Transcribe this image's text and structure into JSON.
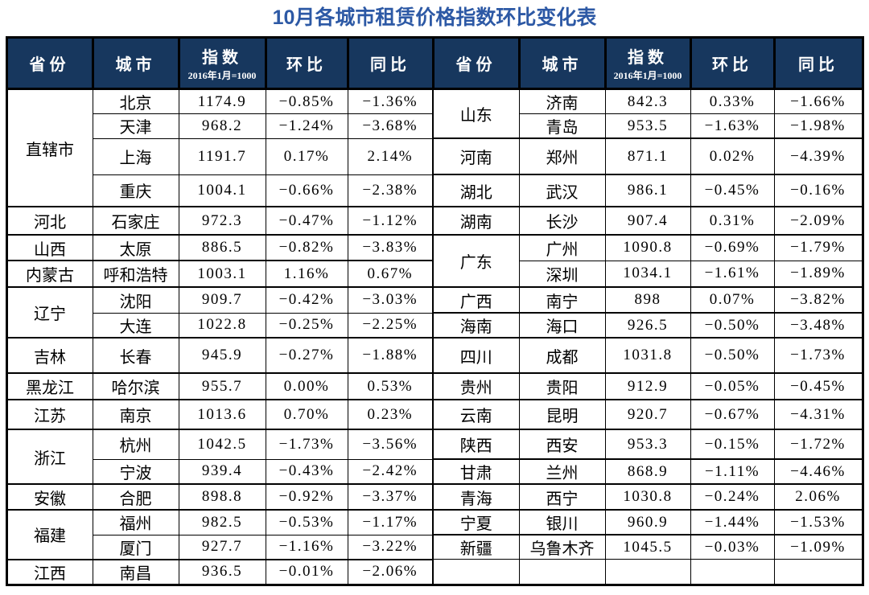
{
  "title": "10月各城市租赁价格指数环比变化表",
  "colors": {
    "title": "#2d59a5",
    "header_bg": "#17375e",
    "header_text": "#ffffff",
    "grid": "#000000"
  },
  "columns": {
    "province": "省份",
    "city": "城市",
    "index": "指数",
    "index_note": "2016年1月=1000",
    "mom": "环比",
    "yoy": "同比"
  },
  "table": {
    "left_groups": [
      {
        "province": "直辖市",
        "cities": [
          {
            "city": "北京",
            "index": 1174.9,
            "mom": "−0.85%",
            "yoy": "−1.36%"
          },
          {
            "city": "天津",
            "index": 968.2,
            "mom": "−1.24%",
            "yoy": "−3.68%"
          },
          {
            "city": "上海",
            "index": 1191.7,
            "mom": "0.17%",
            "yoy": "2.14%"
          },
          {
            "city": "重庆",
            "index": 1004.1,
            "mom": "−0.66%",
            "yoy": "−2.38%"
          }
        ]
      },
      {
        "province": "河北",
        "cities": [
          {
            "city": "石家庄",
            "index": 972.3,
            "mom": "−0.47%",
            "yoy": "−1.12%"
          }
        ]
      },
      {
        "province": "山西",
        "cities": [
          {
            "city": "太原",
            "index": 886.5,
            "mom": "−0.82%",
            "yoy": "−3.83%"
          }
        ]
      },
      {
        "province": "内蒙古",
        "cities": [
          {
            "city": "呼和浩特",
            "index": 1003.1,
            "mom": "1.16%",
            "yoy": "0.67%"
          }
        ]
      },
      {
        "province": "辽宁",
        "cities": [
          {
            "city": "沈阳",
            "index": 909.7,
            "mom": "−0.42%",
            "yoy": "−3.03%"
          },
          {
            "city": "大连",
            "index": 1022.8,
            "mom": "−0.25%",
            "yoy": "−2.25%"
          }
        ]
      },
      {
        "province": "吉林",
        "cities": [
          {
            "city": "长春",
            "index": 945.9,
            "mom": "−0.27%",
            "yoy": "−1.88%"
          }
        ]
      },
      {
        "province": "黑龙江",
        "cities": [
          {
            "city": "哈尔滨",
            "index": 955.7,
            "mom": "0.00%",
            "yoy": "0.53%"
          }
        ]
      },
      {
        "province": "江苏",
        "cities": [
          {
            "city": "南京",
            "index": 1013.6,
            "mom": "0.70%",
            "yoy": "0.23%"
          }
        ]
      },
      {
        "province": "浙江",
        "cities": [
          {
            "city": "杭州",
            "index": 1042.5,
            "mom": "−1.73%",
            "yoy": "−3.56%"
          },
          {
            "city": "宁波",
            "index": 939.4,
            "mom": "−0.43%",
            "yoy": "−2.42%"
          }
        ]
      },
      {
        "province": "安徽",
        "cities": [
          {
            "city": "合肥",
            "index": 898.8,
            "mom": "−0.92%",
            "yoy": "−3.37%"
          }
        ]
      },
      {
        "province": "福建",
        "cities": [
          {
            "city": "福州",
            "index": 982.5,
            "mom": "−0.53%",
            "yoy": "−1.17%"
          },
          {
            "city": "厦门",
            "index": 927.7,
            "mom": "−1.16%",
            "yoy": "−3.22%"
          }
        ]
      },
      {
        "province": "江西",
        "cities": [
          {
            "city": "南昌",
            "index": 936.5,
            "mom": "−0.01%",
            "yoy": "−2.06%"
          }
        ]
      }
    ],
    "right_groups": [
      {
        "province": "山东",
        "cities": [
          {
            "city": "济南",
            "index": 842.3,
            "mom": "0.33%",
            "yoy": "−1.66%"
          },
          {
            "city": "青岛",
            "index": 953.5,
            "mom": "−1.63%",
            "yoy": "−1.98%"
          }
        ]
      },
      {
        "province": "河南",
        "cities": [
          {
            "city": "郑州",
            "index": 871.1,
            "mom": "0.02%",
            "yoy": "−4.39%"
          }
        ]
      },
      {
        "province": "湖北",
        "cities": [
          {
            "city": "武汉",
            "index": 986.1,
            "mom": "−0.45%",
            "yoy": "−0.16%"
          }
        ]
      },
      {
        "province": "湖南",
        "cities": [
          {
            "city": "长沙",
            "index": 907.4,
            "mom": "0.31%",
            "yoy": "−2.09%"
          }
        ]
      },
      {
        "province": "广东",
        "cities": [
          {
            "city": "广州",
            "index": 1090.8,
            "mom": "−0.69%",
            "yoy": "−1.79%"
          },
          {
            "city": "深圳",
            "index": 1034.1,
            "mom": "−1.61%",
            "yoy": "−1.89%"
          }
        ]
      },
      {
        "province": "广西",
        "cities": [
          {
            "city": "南宁",
            "index": 898,
            "mom": "0.07%",
            "yoy": "−3.82%"
          }
        ]
      },
      {
        "province": "海南",
        "cities": [
          {
            "city": "海口",
            "index": 926.5,
            "mom": "−0.50%",
            "yoy": "−3.48%"
          }
        ]
      },
      {
        "province": "四川",
        "cities": [
          {
            "city": "成都",
            "index": 1031.8,
            "mom": "−0.50%",
            "yoy": "−1.73%"
          }
        ]
      },
      {
        "province": "贵州",
        "cities": [
          {
            "city": "贵阳",
            "index": 912.9,
            "mom": "−0.05%",
            "yoy": "−0.45%"
          }
        ]
      },
      {
        "province": "云南",
        "cities": [
          {
            "city": "昆明",
            "index": 920.7,
            "mom": "−0.67%",
            "yoy": "−4.31%"
          }
        ]
      },
      {
        "province": "陕西",
        "cities": [
          {
            "city": "西安",
            "index": 953.3,
            "mom": "−0.15%",
            "yoy": "−1.72%"
          }
        ]
      },
      {
        "province": "甘肃",
        "cities": [
          {
            "city": "兰州",
            "index": 868.9,
            "mom": "−1.11%",
            "yoy": "−4.46%"
          }
        ]
      },
      {
        "province": "青海",
        "cities": [
          {
            "city": "西宁",
            "index": 1030.8,
            "mom": "−0.24%",
            "yoy": "2.06%"
          }
        ]
      },
      {
        "province": "宁夏",
        "cities": [
          {
            "city": "银川",
            "index": 960.9,
            "mom": "−1.44%",
            "yoy": "−1.53%"
          }
        ]
      },
      {
        "province": "新疆",
        "cities": [
          {
            "city": "乌鲁木齐",
            "index": 1045.5,
            "mom": "−0.03%",
            "yoy": "−1.09%"
          }
        ]
      }
    ],
    "right_empty_rows": 1
  }
}
